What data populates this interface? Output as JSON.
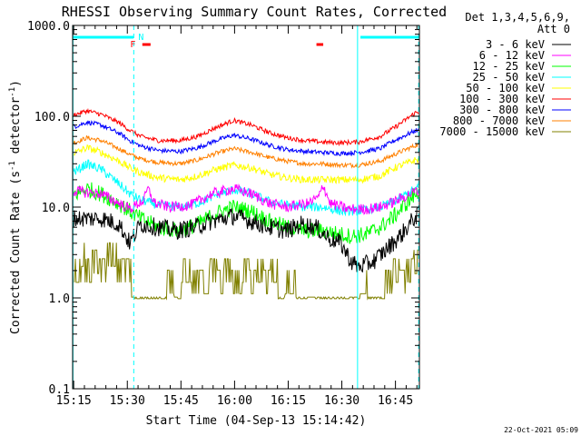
{
  "chart_data": {
    "type": "line",
    "title": "RHESSI Observing Summary Count Rates, Corrected",
    "xlabel": "Start Time (04-Sep-13 15:14:42)",
    "ylabel_base": "Corrected Count Rate (s",
    "ylabel_exp": "-1",
    "ylabel_mid": " detector",
    "ylabel_tail": ")",
    "x_range_min": [
      0,
      97
    ],
    "y_scale": "log",
    "ylim": [
      0.1,
      1000
    ],
    "x_tick_labels": [
      "15:15",
      "15:30",
      "15:45",
      "16:00",
      "16:15",
      "16:30",
      "16:45"
    ],
    "x_ticks_min": [
      0.3,
      15.3,
      30.3,
      45.3,
      60.3,
      75.3,
      90.3
    ],
    "y_ticks": [
      {
        "value": 1000,
        "label": "1000.0"
      },
      {
        "value": 100,
        "label": "100.0"
      },
      {
        "value": 10,
        "label": "10.0"
      },
      {
        "value": 1,
        "label": "1.0"
      },
      {
        "value": 0.1,
        "label": "0.1"
      }
    ],
    "legend_header": [
      "Det 1,3,4,5,6,9,",
      "Att 0"
    ],
    "legend_position": "top-right",
    "series": [
      {
        "name": "3 - 6 keV",
        "color": "#000000",
        "min": [
          1,
          4,
          8,
          13,
          16,
          19,
          24,
          29,
          34,
          39,
          45,
          50,
          55,
          60,
          64,
          68,
          72,
          75,
          78,
          80,
          84,
          88,
          92,
          96
        ],
        "values": [
          7.5,
          7.5,
          7.5,
          6.5,
          4.0,
          6.5,
          6.0,
          5.5,
          6.0,
          7.0,
          8.0,
          7.0,
          6.0,
          5.5,
          6.5,
          6.0,
          4.5,
          4.0,
          2.5,
          2.2,
          2.5,
          3.5,
          5.0,
          8.0
        ]
      },
      {
        "name": "6 - 12 keV",
        "color": "#ff00ff",
        "min": [
          1,
          4,
          8,
          13,
          16,
          20,
          21,
          23,
          27,
          33,
          39,
          45,
          50,
          55,
          60,
          66,
          69,
          70,
          72,
          77,
          82,
          86,
          90,
          96
        ],
        "values": [
          15,
          14.5,
          14,
          11,
          9.5,
          12,
          16,
          11,
          10,
          10.5,
          14,
          16,
          14,
          11,
          10,
          11,
          13,
          18,
          11,
          9.5,
          9.5,
          10,
          11.5,
          15
        ]
      },
      {
        "name": "12 - 25 keV",
        "color": "#00ff00",
        "min": [
          1,
          4,
          8,
          13,
          16,
          19,
          24,
          30,
          35,
          40,
          45,
          50,
          55,
          60,
          65,
          70,
          75,
          78,
          82,
          86,
          90,
          96
        ],
        "values": [
          14,
          16,
          14,
          11,
          9,
          7.5,
          6,
          5.5,
          6.5,
          8.5,
          10,
          9,
          7,
          6,
          5.5,
          5.5,
          5,
          4.8,
          5,
          6,
          8,
          14
        ]
      },
      {
        "name": "25 - 50 keV",
        "color": "#00ffff",
        "min": [
          1,
          4,
          8,
          13,
          16,
          19,
          24,
          30,
          35,
          40,
          45,
          50,
          55,
          60,
          65,
          70,
          75,
          80,
          86,
          90,
          96
        ],
        "values": [
          25,
          30,
          26,
          18,
          14,
          12,
          10.5,
          10,
          11,
          13.5,
          15.5,
          14,
          11.5,
          10.5,
          10,
          10,
          9,
          9,
          10,
          11.5,
          16
        ]
      },
      {
        "name": "50 - 100 keV",
        "color": "#ffff00",
        "min": [
          1,
          4,
          8,
          13,
          16,
          19,
          24,
          30,
          35,
          40,
          45,
          50,
          55,
          60,
          65,
          70,
          75,
          80,
          86,
          90,
          96
        ],
        "values": [
          40,
          45,
          40,
          32,
          27,
          24,
          21,
          20,
          22,
          26,
          29,
          27,
          23,
          21,
          20,
          20,
          20,
          20,
          22,
          27,
          33
        ]
      },
      {
        "name": "100 - 300 keV",
        "color": "#ff0000",
        "min": [
          1,
          4,
          8,
          13,
          16,
          19,
          24,
          30,
          35,
          40,
          45,
          50,
          55,
          60,
          65,
          70,
          75,
          80,
          86,
          90,
          96
        ],
        "values": [
          105,
          115,
          105,
          85,
          70,
          60,
          54,
          54,
          60,
          75,
          90,
          80,
          66,
          58,
          54,
          52,
          51,
          52,
          60,
          75,
          110
        ]
      },
      {
        "name": "300 - 800 keV",
        "color": "#0000ff",
        "min": [
          1,
          4,
          8,
          13,
          16,
          19,
          24,
          30,
          35,
          40,
          45,
          50,
          55,
          60,
          65,
          70,
          75,
          80,
          86,
          90,
          96
        ],
        "values": [
          78,
          86,
          80,
          65,
          54,
          47,
          42,
          41,
          45,
          54,
          62,
          56,
          48,
          43,
          41,
          40,
          39,
          40,
          44,
          54,
          70
        ]
      },
      {
        "name": "800 - 7000 keV",
        "color": "#ff8000",
        "min": [
          1,
          4,
          8,
          13,
          16,
          19,
          24,
          30,
          35,
          40,
          45,
          50,
          55,
          60,
          65,
          70,
          75,
          80,
          86,
          90,
          96
        ],
        "values": [
          52,
          58,
          54,
          44,
          38,
          34,
          31,
          30,
          33,
          39,
          44,
          40,
          35,
          32,
          30,
          30,
          29,
          29,
          32,
          38,
          48
        ]
      },
      {
        "name": "7000 - 15000 keV",
        "color": "#808000",
        "min": [
          0.5,
          2.5,
          3.5,
          5.5,
          7.5,
          9.5,
          12.5,
          16.5,
          23.5,
          26.5,
          28.5,
          30.5,
          33.5,
          35.5,
          38.5,
          40.5,
          42.5,
          44.5,
          47.5,
          49.5,
          51.5,
          53.5,
          55.5,
          57.5,
          59.5,
          62.5,
          65.5,
          72.5,
          75.5,
          78.5,
          80.5,
          82.5,
          87.5,
          89.5,
          91.5,
          93.5,
          95.5
        ],
        "values": [
          2,
          3,
          2,
          2.5,
          2,
          3,
          2,
          1,
          1,
          1.5,
          1,
          2,
          1.5,
          1.5,
          2,
          1.5,
          2,
          1.5,
          2,
          1.5,
          2,
          1.5,
          2,
          1,
          1.5,
          1,
          1,
          1,
          1,
          1,
          1.5,
          1,
          1.5,
          2,
          1.5,
          2,
          2.5
        ]
      }
    ],
    "markers": {
      "night_bars_min": [
        [
          0,
          17
        ],
        [
          80.5,
          97
        ]
      ],
      "night_label": "N",
      "flare_label": "F",
      "flare_bars_min": [
        [
          19.5,
          21.8
        ],
        [
          68.2,
          70.1
        ]
      ],
      "vlines_solid_min": [
        0.1,
        79.7
      ],
      "vlines_dashed_min": [
        17.1,
        96.8
      ]
    }
  },
  "footer": {
    "date": "22-Oct-2021 05:09"
  }
}
